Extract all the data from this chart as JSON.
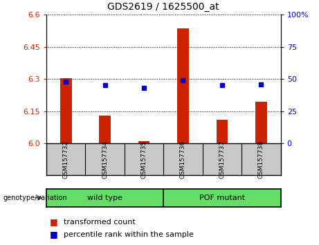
{
  "title": "GDS2619 / 1625500_at",
  "samples": [
    "GSM157732",
    "GSM157734",
    "GSM157735",
    "GSM157736",
    "GSM157737",
    "GSM157738"
  ],
  "transformed_count": [
    6.305,
    6.13,
    6.01,
    6.535,
    6.11,
    6.195
  ],
  "percentile_rank": [
    48,
    45,
    43,
    49,
    45,
    46
  ],
  "ylim_left": [
    6.0,
    6.6
  ],
  "ylim_right": [
    0,
    100
  ],
  "yticks_left": [
    6.0,
    6.15,
    6.3,
    6.45,
    6.6
  ],
  "yticks_right": [
    0,
    25,
    50,
    75,
    100
  ],
  "bar_color": "#CC2200",
  "dot_color": "#0000CC",
  "bar_width": 0.3,
  "bg_color_samples": "#C8C8C8",
  "bg_color_groups": "#66DD66",
  "legend_items": [
    "transformed count",
    "percentile rank within the sample"
  ],
  "group_labels": [
    "wild type",
    "POF mutant"
  ],
  "group_divider": 2.5
}
